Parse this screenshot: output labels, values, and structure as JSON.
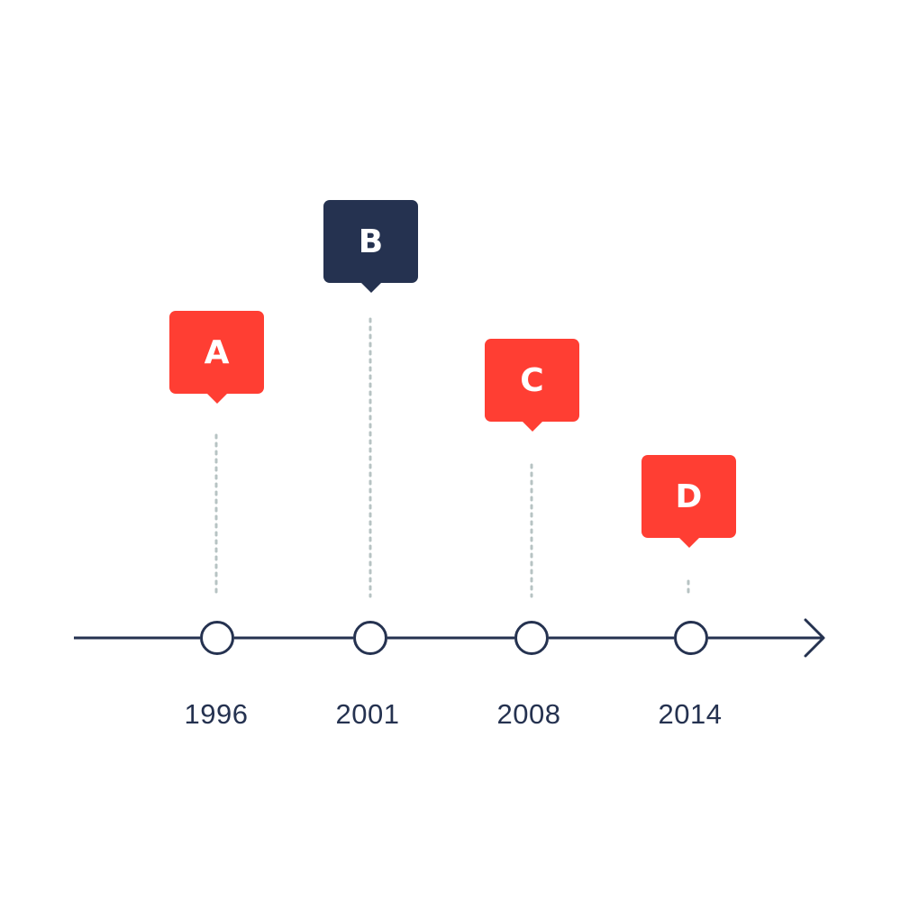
{
  "colors": {
    "accent": "#ff3e33",
    "dark": "#253250",
    "guide": "#b7c3c3",
    "background": "#ffffff"
  },
  "events": [
    {
      "label": "A",
      "year": "1996",
      "color": "#ff3e33"
    },
    {
      "label": "B",
      "year": "2001",
      "color": "#253250"
    },
    {
      "label": "C",
      "year": "2008",
      "color": "#ff3e33"
    },
    {
      "label": "D",
      "year": "2014",
      "color": "#ff3e33"
    }
  ],
  "axis_arrow_icon": "arrow-right-icon"
}
